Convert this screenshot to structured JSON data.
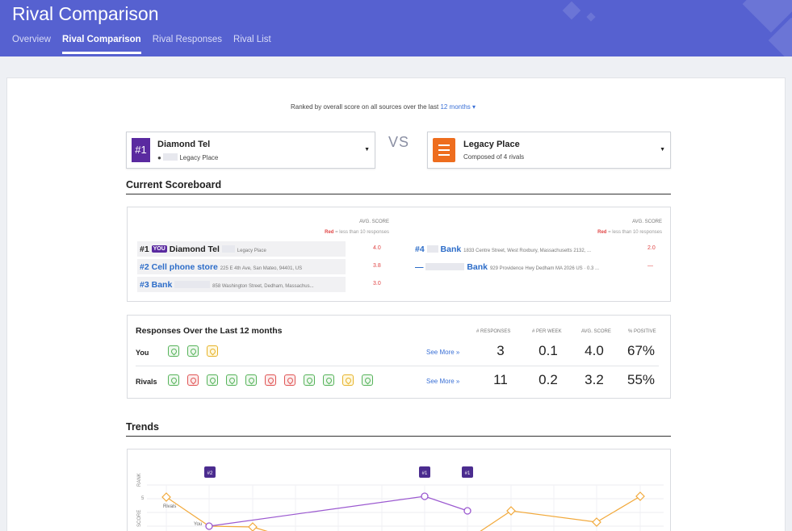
{
  "header": {
    "title": "Rival Comparison",
    "tabs": [
      "Overview",
      "Rival Comparison",
      "Rival Responses",
      "Rival List"
    ],
    "active_tab": "Rival Comparison"
  },
  "ranked": {
    "text": "Ranked by overall score on all sources over the last",
    "period": "12 months ▾"
  },
  "left_selector": {
    "rank_badge": "#1",
    "name": "Diamond Tel",
    "location": "Legacy Place"
  },
  "vs": "VS",
  "right_selector": {
    "name": "Legacy Place",
    "sub": "Composed of 4 rivals"
  },
  "scoreboard": {
    "title": "Current Scoreboard",
    "avg_label": "AVG. SCORE",
    "red_note": "Red",
    "red_note_rest": " = less than 10 responses",
    "left_rows": [
      {
        "rank": "#1",
        "you": "YOU",
        "name": "Diamond Tel",
        "addr": "Legacy Place",
        "score": "4.0"
      },
      {
        "rank": "#2",
        "name": "Cell phone store",
        "addr": "225 E 4th Ave, San Mateo, 94401, US",
        "score": "3.8"
      },
      {
        "rank": "#3",
        "name": "Bank",
        "addr": "858 Washington Street, Dedham, Massachus...",
        "score": "3.0"
      }
    ],
    "right_rows": [
      {
        "rank": "#4",
        "name": "Bank",
        "addr": "1833 Centre Street, West Roxbury, Massachusetts 2132, ...",
        "score": "2.0"
      },
      {
        "rank": "—",
        "name": "Bank",
        "addr": "929 Providence Hwy Dedham MA 2026 US · 0.3 ...",
        "score": "—"
      }
    ]
  },
  "responses": {
    "title": "Responses Over the Last 12 months",
    "headers": [
      "# RESPONSES",
      "# PER WEEK",
      "AVG. SCORE",
      "% POSITIVE"
    ],
    "see_more": "See More »",
    "you": {
      "label": "You",
      "icons": [
        "g",
        "g",
        "y"
      ],
      "values": [
        "3",
        "0.1",
        "4.0",
        "67%"
      ]
    },
    "rivals": {
      "label": "Rivals",
      "icons": [
        "g",
        "r",
        "g",
        "g",
        "g",
        "r",
        "r",
        "g",
        "g",
        "y",
        "g"
      ],
      "values": [
        "11",
        "0.2",
        "3.2",
        "55%"
      ]
    }
  },
  "trends": {
    "title": "Trends",
    "rank_axis": "RANK",
    "score_axis": "SCORE",
    "badges": [
      "#2",
      "#1",
      "#1"
    ],
    "tick": "5",
    "rivals_label": "Rivals",
    "you_label": "You",
    "colors": {
      "you": "#9b59d0",
      "rivals": "#f2a93b"
    }
  },
  "colors": {
    "header": "#5661d0",
    "accent": "#5a2aa0",
    "orange": "#ee6d1e",
    "link": "#3a70d6",
    "red": "#e04444"
  }
}
